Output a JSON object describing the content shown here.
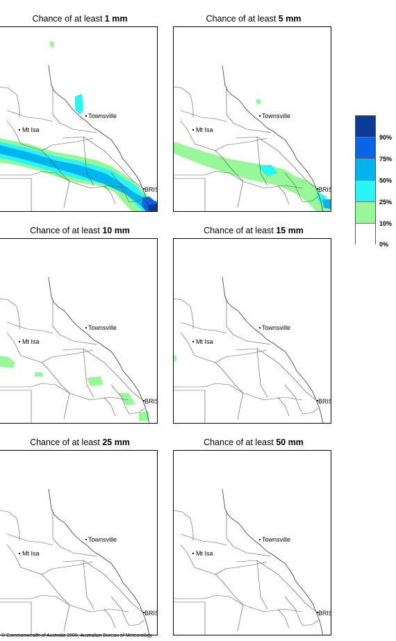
{
  "panels": [
    {
      "title_prefix": "Chance of at least",
      "amount": "1 mm"
    },
    {
      "title_prefix": "Chance of at least",
      "amount": "5 mm"
    },
    {
      "title_prefix": "Chance of at least",
      "amount": "10 mm"
    },
    {
      "title_prefix": "Chance of at least",
      "amount": "15 mm"
    },
    {
      "title_prefix": "Chance of at least",
      "amount": "25 mm"
    },
    {
      "title_prefix": "Chance of at least",
      "amount": "50 mm"
    }
  ],
  "map_labels": {
    "townsville": "Townsville",
    "mt_isa": "Mt Isa",
    "brisbane": "BRIS"
  },
  "legend": {
    "labels": [
      "90%",
      "75%",
      "50%",
      "25%",
      "10%",
      "0%"
    ],
    "colors": [
      "#0a3c96",
      "#0a64e6",
      "#00b4ee",
      "#2af5f5",
      "#96f896",
      "#ffffff"
    ]
  },
  "footer": "© Commonwealth of Australia 2006, Australian Bureau of Meteorology"
}
